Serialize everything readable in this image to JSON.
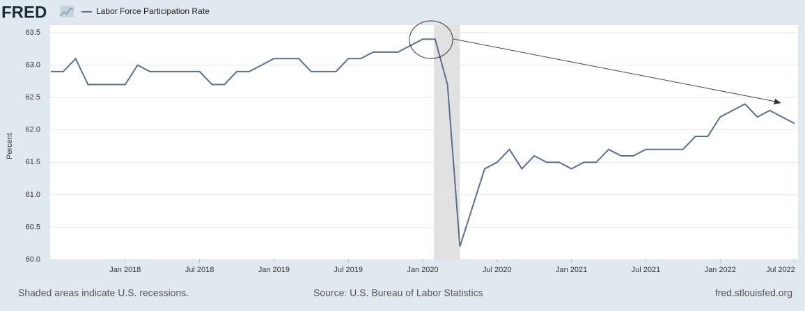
{
  "logo": "FRED",
  "chart_data": {
    "type": "line",
    "series": [
      {
        "name": "Labor Force Participation Rate",
        "color": "#56708e",
        "values": [
          62.9,
          62.9,
          63.1,
          62.7,
          62.7,
          62.7,
          62.7,
          63.0,
          62.9,
          62.9,
          62.9,
          62.9,
          62.9,
          62.7,
          62.7,
          62.9,
          62.9,
          63.0,
          63.1,
          63.1,
          63.1,
          62.9,
          62.9,
          62.9,
          63.1,
          63.1,
          63.2,
          63.2,
          63.2,
          63.3,
          63.4,
          63.4,
          62.7,
          60.2,
          60.8,
          61.4,
          61.5,
          61.7,
          61.4,
          61.6,
          61.5,
          61.5,
          61.4,
          61.5,
          61.5,
          61.7,
          61.6,
          61.6,
          61.7,
          61.7,
          61.7,
          61.7,
          61.9,
          61.9,
          62.2,
          62.3,
          62.4,
          62.2,
          62.3,
          62.2,
          62.1
        ]
      }
    ],
    "categories": [
      null,
      null,
      null,
      null,
      null,
      null,
      "Jan 2018",
      null,
      null,
      null,
      null,
      null,
      "Jul 2018",
      null,
      null,
      null,
      null,
      null,
      "Jan 2019",
      null,
      null,
      null,
      null,
      null,
      "Jul 2019",
      null,
      null,
      null,
      null,
      null,
      "Jan 2020",
      null,
      null,
      null,
      null,
      null,
      "Jul 2020",
      null,
      null,
      null,
      null,
      null,
      "Jan 2021",
      null,
      null,
      null,
      null,
      null,
      "Jul 2021",
      null,
      null,
      null,
      null,
      null,
      "Jan 2022",
      null,
      null,
      null,
      null,
      null,
      "Jul 2022"
    ],
    "recession": [
      31,
      33
    ],
    "y_label": "Percent",
    "ylim": [
      60,
      63.5
    ],
    "yticks": [
      {
        "value": 60,
        "label": "60.0"
      },
      60.5,
      {
        "value": 61,
        "label": "61.0"
      },
      61.5,
      {
        "value": 62,
        "label": "62.0"
      },
      62.5,
      {
        "value": 63,
        "label": "63.0"
      },
      63.5
    ],
    "grid": true
  },
  "footer": {
    "left": "Shaded areas indicate U.S. recessions.",
    "center": "Source: U.S. Bureau of Labor Statistics",
    "right": "fred.stlouisfed.org"
  }
}
